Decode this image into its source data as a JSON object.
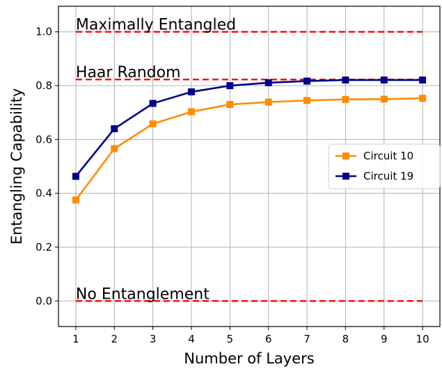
{
  "chart_data": {
    "type": "line",
    "title": "",
    "xlabel": "Number of Layers",
    "ylabel": "Entangling Capability",
    "x": [
      1,
      2,
      3,
      4,
      5,
      6,
      7,
      8,
      9,
      10
    ],
    "xlim": [
      0.55,
      10.45
    ],
    "ylim": [
      -0.095,
      1.095
    ],
    "xticks": [
      "1",
      "2",
      "3",
      "4",
      "5",
      "6",
      "7",
      "8",
      "9",
      "10"
    ],
    "yticks": [
      "0.0",
      "0.2",
      "0.4",
      "0.6",
      "0.8",
      "1.0"
    ],
    "grid": true,
    "legend_position": "center-right",
    "series": [
      {
        "name": "Circuit 10",
        "color": "#ff8c00",
        "marker": "square",
        "values": [
          0.375,
          0.566,
          0.658,
          0.703,
          0.73,
          0.739,
          0.745,
          0.749,
          0.75,
          0.753
        ]
      },
      {
        "name": "Circuit 19",
        "color": "#00008b",
        "marker": "square",
        "values": [
          0.463,
          0.64,
          0.734,
          0.777,
          0.8,
          0.811,
          0.817,
          0.821,
          0.821,
          0.821
        ]
      }
    ],
    "reference_lines": [
      {
        "label": "Maximally Entangled",
        "value": 1.0,
        "color": "#ff0000",
        "style": "dashed"
      },
      {
        "label": "Haar Random",
        "value": 0.823,
        "color": "#ff0000",
        "style": "dashed"
      },
      {
        "label": "No Entanglement",
        "value": 0.0,
        "color": "#ff0000",
        "style": "dashed"
      }
    ]
  }
}
